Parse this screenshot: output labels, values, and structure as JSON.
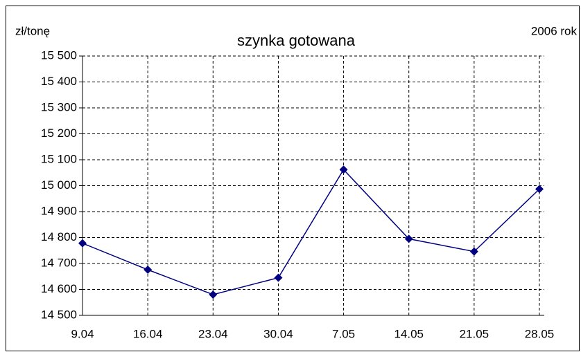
{
  "chart_data": {
    "type": "line",
    "title": "szynka gotowana",
    "y_label": "zł/tonę",
    "annotation": "2006 rok",
    "categories": [
      "9.04",
      "16.04",
      "23.04",
      "30.04",
      "7.05",
      "14.05",
      "21.05",
      "28.05"
    ],
    "series": [
      {
        "name": "szynka gotowana",
        "color": "#000080",
        "values": [
          14778,
          14676,
          14580,
          14645,
          15062,
          14795,
          14746,
          14987
        ]
      }
    ],
    "ylim": [
      14500,
      15500
    ],
    "yticks": [
      {
        "value": 14500,
        "label": "14 500"
      },
      {
        "value": 14600,
        "label": "14 600"
      },
      {
        "value": 14700,
        "label": "14 700"
      },
      {
        "value": 14800,
        "label": "14 800"
      },
      {
        "value": 14900,
        "label": "14 900"
      },
      {
        "value": 15000,
        "label": "15 000"
      },
      {
        "value": 15100,
        "label": "15 100"
      },
      {
        "value": 15200,
        "label": "15 200"
      },
      {
        "value": 15300,
        "label": "15 300"
      },
      {
        "value": 15400,
        "label": "15 400"
      },
      {
        "value": 15500,
        "label": "15 500"
      }
    ],
    "grid": true
  }
}
